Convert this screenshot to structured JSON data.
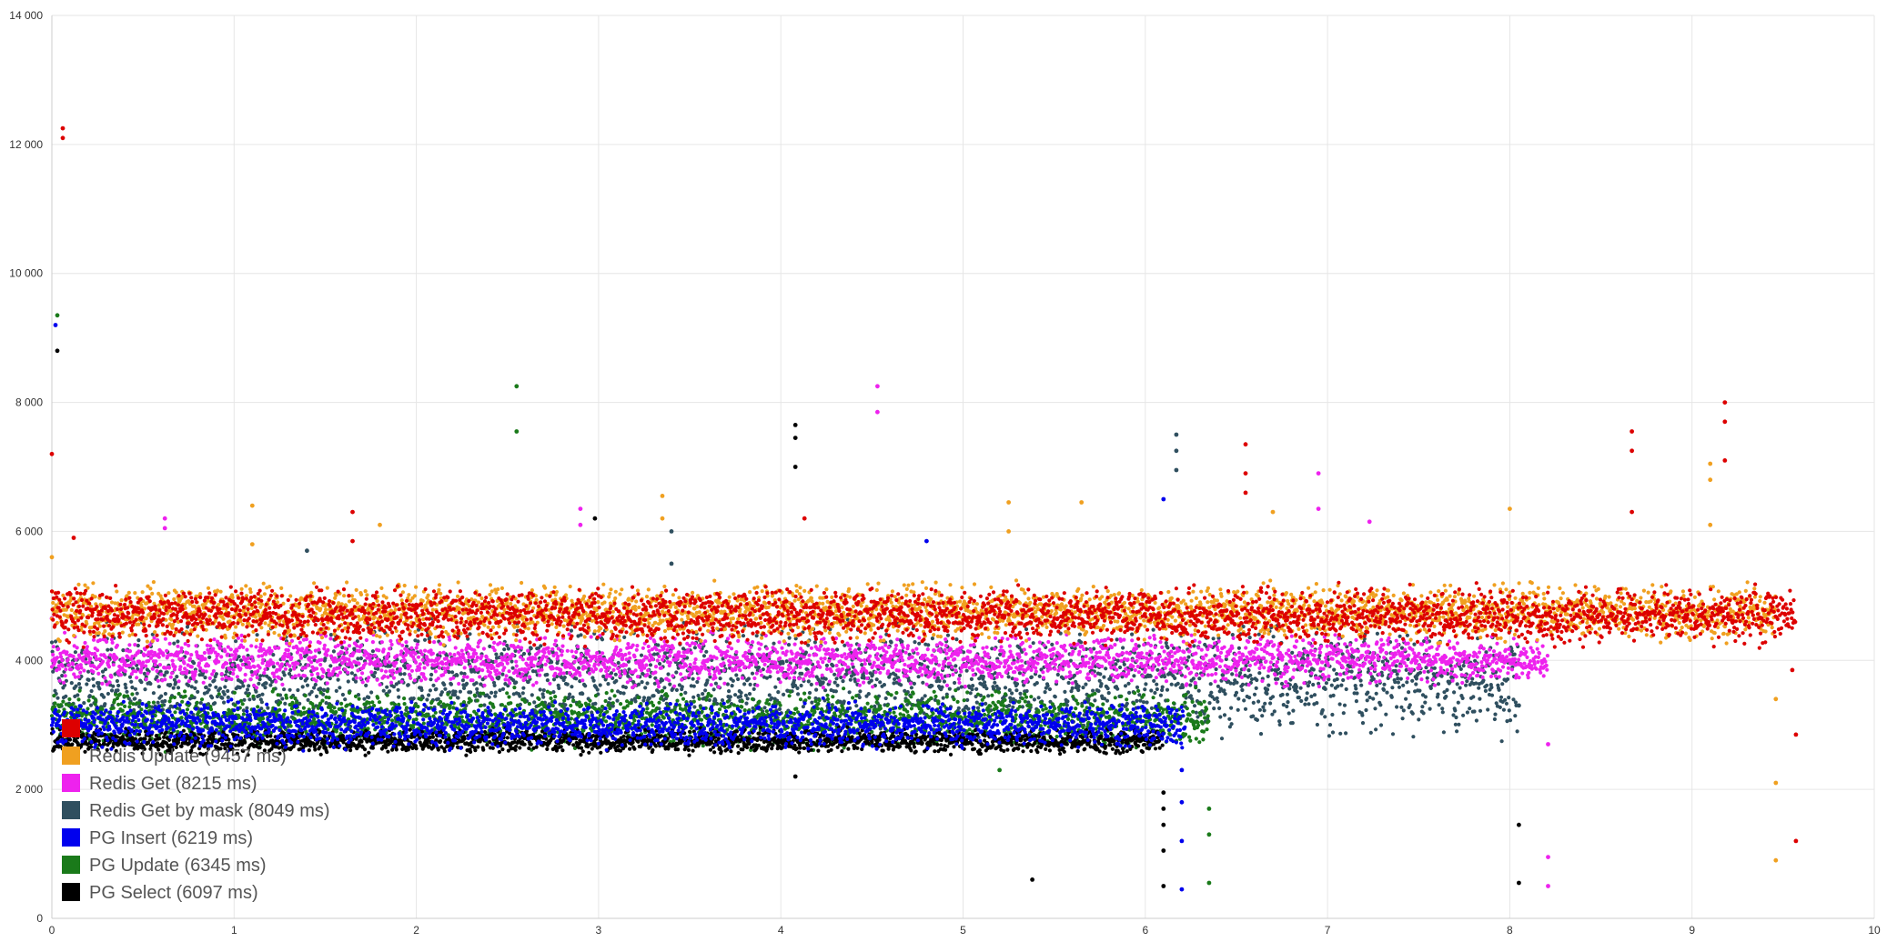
{
  "chart_data": {
    "type": "scatter",
    "title": "",
    "xlabel": "",
    "ylabel": "",
    "xlim": [
      0,
      10
    ],
    "ylim": [
      0,
      14000
    ],
    "x_ticks": [
      0,
      1,
      2,
      3,
      4,
      5,
      6,
      7,
      8,
      9,
      10
    ],
    "x_tick_labels": [
      "0",
      "1",
      "2",
      "3",
      "4",
      "5",
      "6",
      "7",
      "8",
      "9",
      "10"
    ],
    "y_ticks": [
      0,
      2000,
      4000,
      6000,
      8000,
      10000,
      12000,
      14000
    ],
    "y_tick_labels": [
      "0",
      "2 000",
      "4 000",
      "6 000",
      "8 000",
      "10 000",
      "12 000",
      "14 000"
    ],
    "grid": true,
    "legend_position": "bottom-left",
    "series": [
      {
        "name": "",
        "color": "#dd0000",
        "x_end": 9.57,
        "typical_y": 4700,
        "band": [
          4200,
          5300
        ],
        "outliers": [
          [
            0.06,
            12250
          ],
          [
            0.06,
            12100
          ],
          [
            0.0,
            7200
          ],
          [
            0.12,
            5900
          ],
          [
            1.65,
            6300
          ],
          [
            1.65,
            5850
          ],
          [
            4.13,
            6200
          ],
          [
            6.55,
            7350
          ],
          [
            6.55,
            6900
          ],
          [
            6.55,
            6600
          ],
          [
            8.67,
            7550
          ],
          [
            8.67,
            7250
          ],
          [
            8.67,
            6300
          ],
          [
            9.18,
            8000
          ],
          [
            9.18,
            7700
          ],
          [
            9.18,
            7100
          ],
          [
            9.57,
            2850
          ],
          [
            9.57,
            1200
          ],
          [
            9.55,
            3850
          ]
        ]
      },
      {
        "name": "Redis Update (9457 ms)",
        "color": "#f0a020",
        "x_end": 9.46,
        "typical_y": 4750,
        "band": [
          4300,
          5400
        ],
        "outliers": [
          [
            0.0,
            5600
          ],
          [
            1.1,
            6400
          ],
          [
            1.1,
            5800
          ],
          [
            1.8,
            6100
          ],
          [
            3.35,
            6550
          ],
          [
            3.35,
            6200
          ],
          [
            5.25,
            6450
          ],
          [
            5.25,
            6000
          ],
          [
            5.65,
            6450
          ],
          [
            6.7,
            6300
          ],
          [
            8.0,
            6350
          ],
          [
            9.1,
            7050
          ],
          [
            9.1,
            6800
          ],
          [
            9.1,
            6100
          ],
          [
            9.46,
            3400
          ],
          [
            9.46,
            2100
          ],
          [
            9.46,
            900
          ]
        ]
      },
      {
        "name": "Redis Get (8215 ms)",
        "color": "#ee22ee",
        "x_end": 8.21,
        "typical_y": 4000,
        "band": [
          3600,
          4600
        ],
        "outliers": [
          [
            0.0,
            4650
          ],
          [
            0.62,
            6200
          ],
          [
            0.62,
            6050
          ],
          [
            2.9,
            6350
          ],
          [
            2.9,
            6100
          ],
          [
            4.53,
            8250
          ],
          [
            4.53,
            7850
          ],
          [
            6.95,
            6900
          ],
          [
            6.95,
            6350
          ],
          [
            7.23,
            6150
          ],
          [
            8.21,
            2700
          ],
          [
            8.21,
            950
          ],
          [
            8.21,
            500
          ]
        ]
      },
      {
        "name": "Redis Get by mask (8049 ms)",
        "color": "#2f4f5f",
        "x_end": 8.05,
        "typical_y": 3700,
        "band": [
          2600,
          4800
        ],
        "outliers": [
          [
            1.4,
            5700
          ],
          [
            3.4,
            6000
          ],
          [
            3.4,
            5500
          ],
          [
            6.17,
            7500
          ],
          [
            6.17,
            7250
          ],
          [
            6.17,
            6950
          ],
          [
            8.05,
            3300
          ]
        ]
      },
      {
        "name": "PG Insert (6219 ms)",
        "color": "#0000ee",
        "x_end": 6.22,
        "typical_y": 3000,
        "band": [
          2600,
          3500
        ],
        "outliers": [
          [
            0.02,
            9200
          ],
          [
            4.8,
            5850
          ],
          [
            6.1,
            6500
          ],
          [
            6.2,
            2300
          ],
          [
            6.2,
            1800
          ],
          [
            6.2,
            1200
          ],
          [
            6.2,
            450
          ]
        ]
      },
      {
        "name": "PG Update (6345 ms)",
        "color": "#1a7a1a",
        "x_end": 6.35,
        "typical_y": 3100,
        "band": [
          2600,
          3700
        ],
        "outliers": [
          [
            0.03,
            9350
          ],
          [
            2.55,
            8250
          ],
          [
            2.55,
            7550
          ],
          [
            5.2,
            2300
          ],
          [
            6.35,
            1700
          ],
          [
            6.35,
            1300
          ],
          [
            6.35,
            550
          ]
        ]
      },
      {
        "name": "PG Select (6097 ms)",
        "color": "#000000",
        "x_end": 6.1,
        "typical_y": 2750,
        "band": [
          2500,
          3000
        ],
        "outliers": [
          [
            0.03,
            8800
          ],
          [
            2.98,
            6200
          ],
          [
            4.08,
            7650
          ],
          [
            4.08,
            7450
          ],
          [
            4.08,
            7000
          ],
          [
            4.08,
            2200
          ],
          [
            5.38,
            600
          ],
          [
            6.1,
            1950
          ],
          [
            6.1,
            1700
          ],
          [
            6.1,
            1450
          ],
          [
            6.1,
            1050
          ],
          [
            6.1,
            500
          ],
          [
            8.05,
            1450
          ],
          [
            8.05,
            550
          ]
        ]
      }
    ]
  }
}
